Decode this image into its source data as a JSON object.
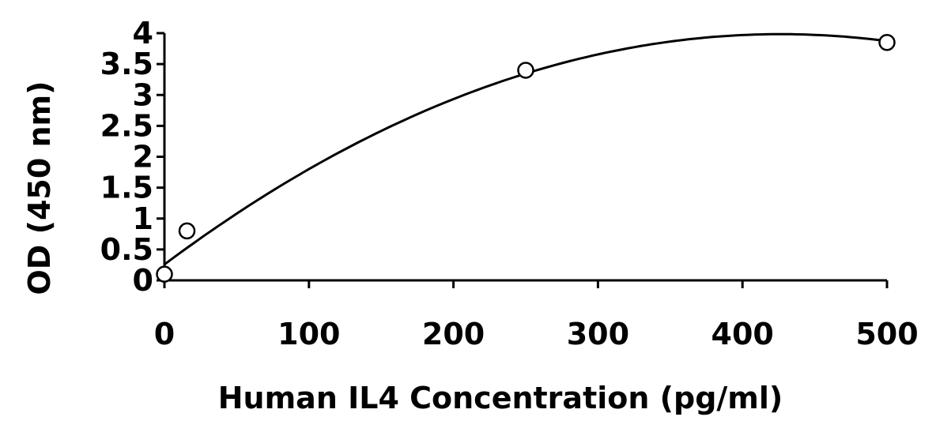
{
  "chart_data": {
    "type": "scatter",
    "title": "",
    "xlabel": "Human IL4 Concentration (pg/ml)",
    "ylabel": "OD (450 nm)",
    "xlim": [
      0,
      500
    ],
    "ylim": [
      0,
      4
    ],
    "x_ticks": [
      "0",
      "100",
      "200",
      "300",
      "400",
      "500"
    ],
    "y_ticks": [
      "0",
      "0.5",
      "1",
      "1.5",
      "2",
      "2.5",
      "3",
      "3.5",
      "4"
    ],
    "grid": false,
    "legend": "none",
    "series": [
      {
        "marker": "open-circle",
        "points": [
          {
            "x": 0,
            "y": 0.1
          },
          {
            "x": 15.6,
            "y": 0.8
          },
          {
            "x": 250,
            "y": 3.4
          },
          {
            "x": 500,
            "y": 3.85
          }
        ]
      }
    ],
    "fit_curve": {
      "kind": "quadratic",
      "points": [
        {
          "x": 0,
          "y": 0.3
        },
        {
          "x": 50,
          "y": 1.07
        },
        {
          "x": 100,
          "y": 1.77
        },
        {
          "x": 150,
          "y": 2.38
        },
        {
          "x": 200,
          "y": 2.91
        },
        {
          "x": 250,
          "y": 3.36
        },
        {
          "x": 300,
          "y": 3.69
        },
        {
          "x": 350,
          "y": 3.89
        },
        {
          "x": 400,
          "y": 3.98
        },
        {
          "x": 450,
          "y": 3.98
        },
        {
          "x": 500,
          "y": 3.84
        }
      ]
    },
    "colors": {
      "axis": "#000000",
      "curve": "#000000",
      "marker_stroke": "#000000",
      "marker_fill": "#ffffff"
    }
  }
}
